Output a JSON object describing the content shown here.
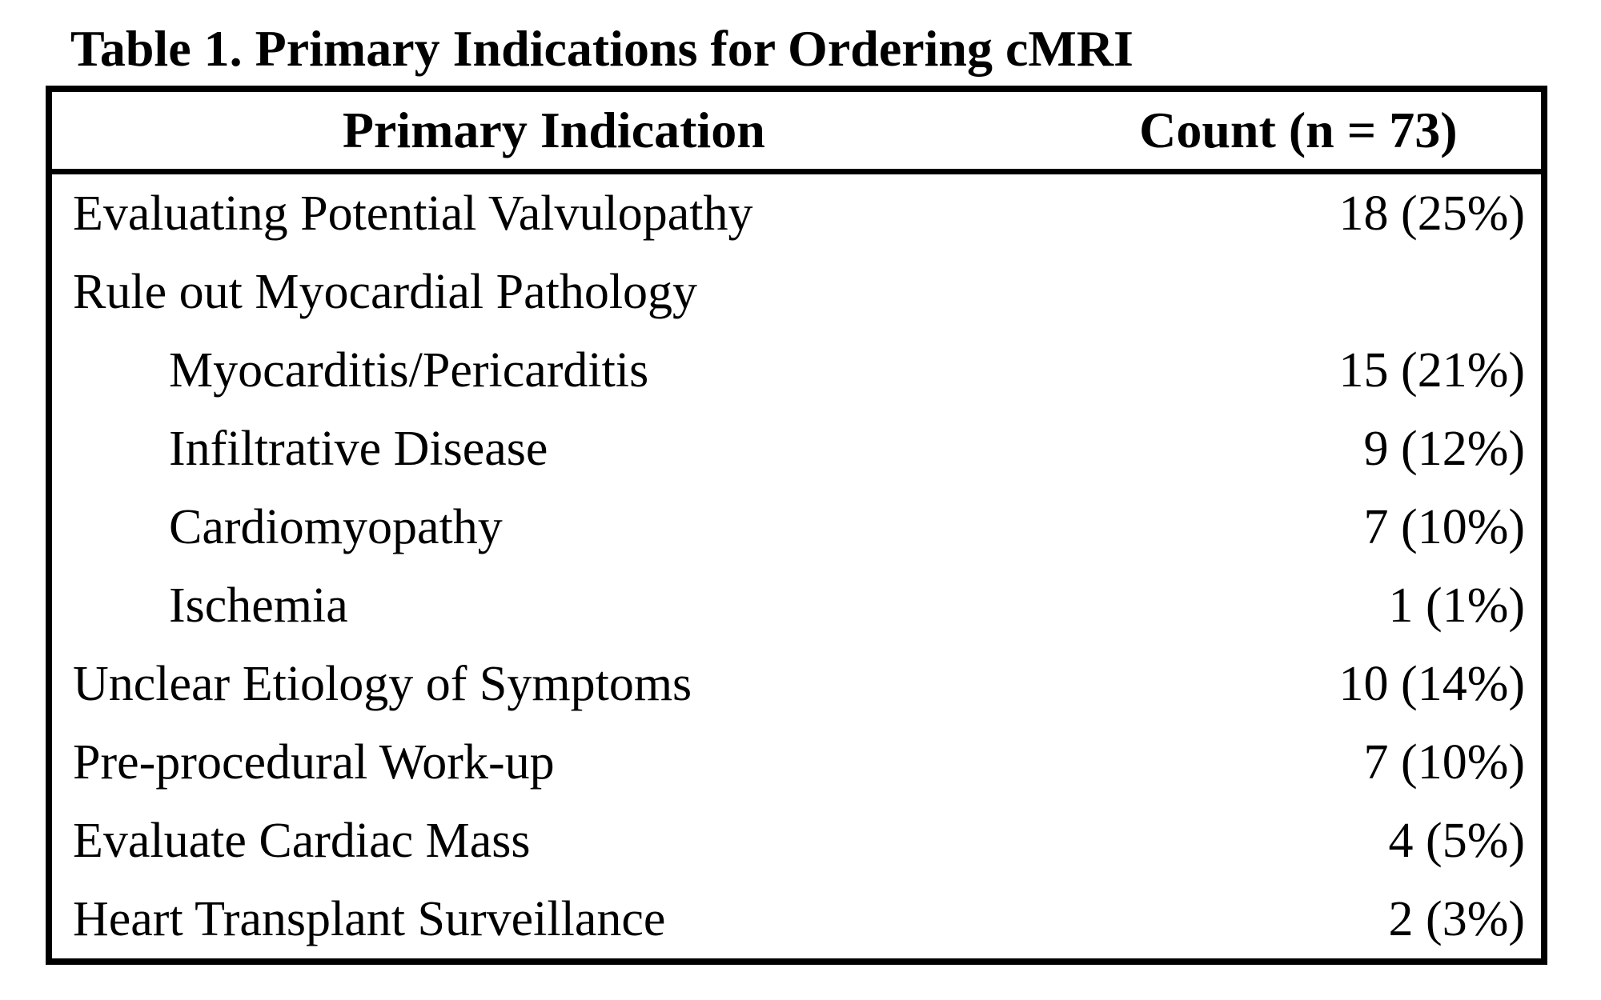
{
  "page": {
    "background_color": "#ffffff",
    "text_color": "#000000",
    "border_color": "#000000"
  },
  "title": "Table 1. Primary Indications for Ordering cMRI",
  "table": {
    "columns": [
      "Primary Indication",
      "Count (n = 73)"
    ],
    "rows": [
      {
        "label": "Evaluating Potential Valvulopathy",
        "count": "18 (25%)",
        "indent": false
      },
      {
        "label": "Rule out Myocardial Pathology",
        "count": "",
        "indent": false
      },
      {
        "label": "Myocarditis/Pericarditis",
        "count": "15 (21%)",
        "indent": true
      },
      {
        "label": "Infiltrative Disease",
        "count": "9 (12%)",
        "indent": true
      },
      {
        "label": "Cardiomyopathy",
        "count": "7 (10%)",
        "indent": true
      },
      {
        "label": "Ischemia",
        "count": "1 (1%)",
        "indent": true
      },
      {
        "label": "Unclear Etiology of Symptoms",
        "count": "10 (14%)",
        "indent": false
      },
      {
        "label": "Pre-procedural Work-up",
        "count": "7 (10%)",
        "indent": false
      },
      {
        "label": "Evaluate Cardiac Mass",
        "count": "4 (5%)",
        "indent": false
      },
      {
        "label": "Heart Transplant Surveillance",
        "count": "2 (3%)",
        "indent": false
      }
    ]
  },
  "chart_data": {
    "type": "table",
    "title": "Table 1. Primary Indications for Ordering cMRI",
    "columns": [
      "Primary Indication",
      "Count (n = 73)"
    ],
    "n_total": 73,
    "categories": [
      "Evaluating Potential Valvulopathy",
      "Rule out Myocardial Pathology > Myocarditis/Pericarditis",
      "Rule out Myocardial Pathology > Infiltrative Disease",
      "Rule out Myocardial Pathology > Cardiomyopathy",
      "Rule out Myocardial Pathology > Ischemia",
      "Unclear Etiology of Symptoms",
      "Pre-procedural Work-up",
      "Evaluate Cardiac Mass",
      "Heart Transplant Surveillance"
    ],
    "counts": [
      18,
      15,
      9,
      7,
      1,
      10,
      7,
      4,
      2
    ],
    "percents": [
      25,
      21,
      12,
      10,
      1,
      14,
      10,
      5,
      3
    ]
  }
}
